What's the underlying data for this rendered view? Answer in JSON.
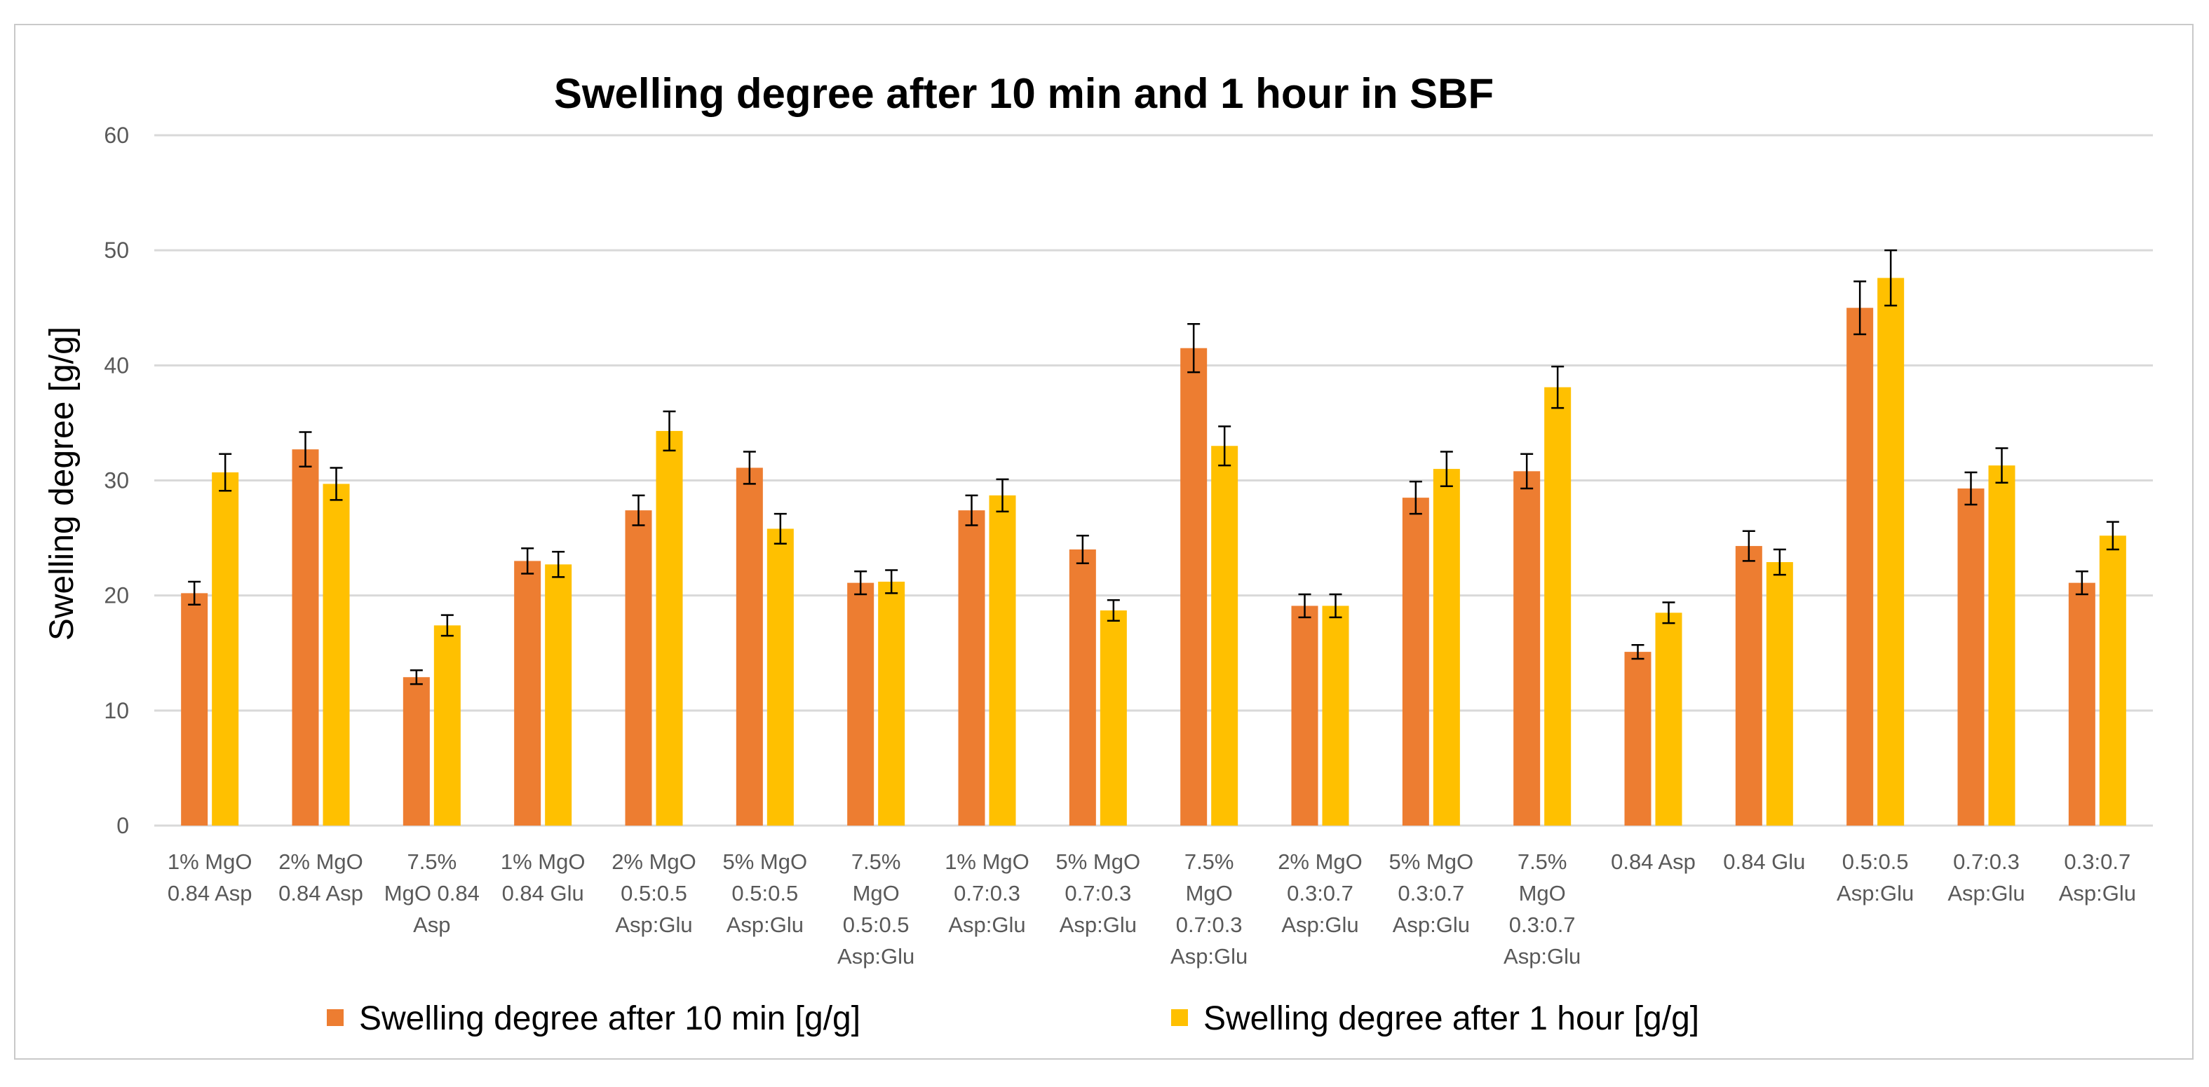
{
  "chart_data": {
    "type": "bar",
    "title": "Swelling degree after 10 min and 1 hour in SBF",
    "xlabel": "",
    "ylabel": "Swelling degree [g/g]",
    "ylim": [
      0,
      60
    ],
    "yticks": [
      "0",
      "10",
      "20",
      "30",
      "40",
      "50",
      "60"
    ],
    "grid": true,
    "legend_position": "bottom",
    "categories": [
      [
        "1% MgO",
        "0.84 Asp"
      ],
      [
        "2% MgO",
        "0.84 Asp"
      ],
      [
        "7.5%",
        "MgO 0.84",
        "Asp"
      ],
      [
        "1% MgO",
        "0.84 Glu"
      ],
      [
        "2% MgO",
        "0.5:0.5",
        "Asp:Glu"
      ],
      [
        "5% MgO",
        "0.5:0.5",
        "Asp:Glu"
      ],
      [
        "7.5%",
        "MgO",
        "0.5:0.5",
        "Asp:Glu"
      ],
      [
        "1% MgO",
        "0.7:0.3",
        "Asp:Glu"
      ],
      [
        "5% MgO",
        "0.7:0.3",
        "Asp:Glu"
      ],
      [
        "7.5%",
        "MgO",
        "0.7:0.3",
        "Asp:Glu"
      ],
      [
        "2% MgO",
        "0.3:0.7",
        "Asp:Glu"
      ],
      [
        "5% MgO",
        "0.3:0.7",
        "Asp:Glu"
      ],
      [
        "7.5%",
        "MgO",
        "0.3:0.7",
        "Asp:Glu"
      ],
      [
        "0.84 Asp"
      ],
      [
        "0.84 Glu"
      ],
      [
        "0.5:0.5",
        "Asp:Glu"
      ],
      [
        "0.7:0.3",
        "Asp:Glu"
      ],
      [
        "0.3:0.7",
        "Asp:Glu"
      ]
    ],
    "series": [
      {
        "name": "Swelling degree after 10 min [g/g]",
        "color": "#ED7D31",
        "values": [
          20.2,
          32.7,
          12.9,
          23.0,
          27.4,
          31.1,
          21.1,
          27.4,
          24.0,
          41.5,
          19.1,
          28.5,
          30.8,
          15.1,
          24.3,
          45.0,
          29.3,
          21.1
        ],
        "errors": [
          1.0,
          1.5,
          0.6,
          1.1,
          1.3,
          1.4,
          1.0,
          1.3,
          1.2,
          2.1,
          1.0,
          1.4,
          1.5,
          0.6,
          1.3,
          2.3,
          1.4,
          1.0
        ]
      },
      {
        "name": "Swelling degree after 1 hour [g/g]",
        "color": "#FFC000",
        "values": [
          30.7,
          29.7,
          17.4,
          22.7,
          34.3,
          25.8,
          21.2,
          28.7,
          18.7,
          33.0,
          19.1,
          31.0,
          38.1,
          18.5,
          22.9,
          47.6,
          31.3,
          25.2
        ],
        "errors": [
          1.6,
          1.4,
          0.9,
          1.1,
          1.7,
          1.3,
          1.0,
          1.4,
          0.9,
          1.7,
          1.0,
          1.5,
          1.8,
          0.9,
          1.1,
          2.4,
          1.5,
          1.2
        ]
      }
    ]
  }
}
